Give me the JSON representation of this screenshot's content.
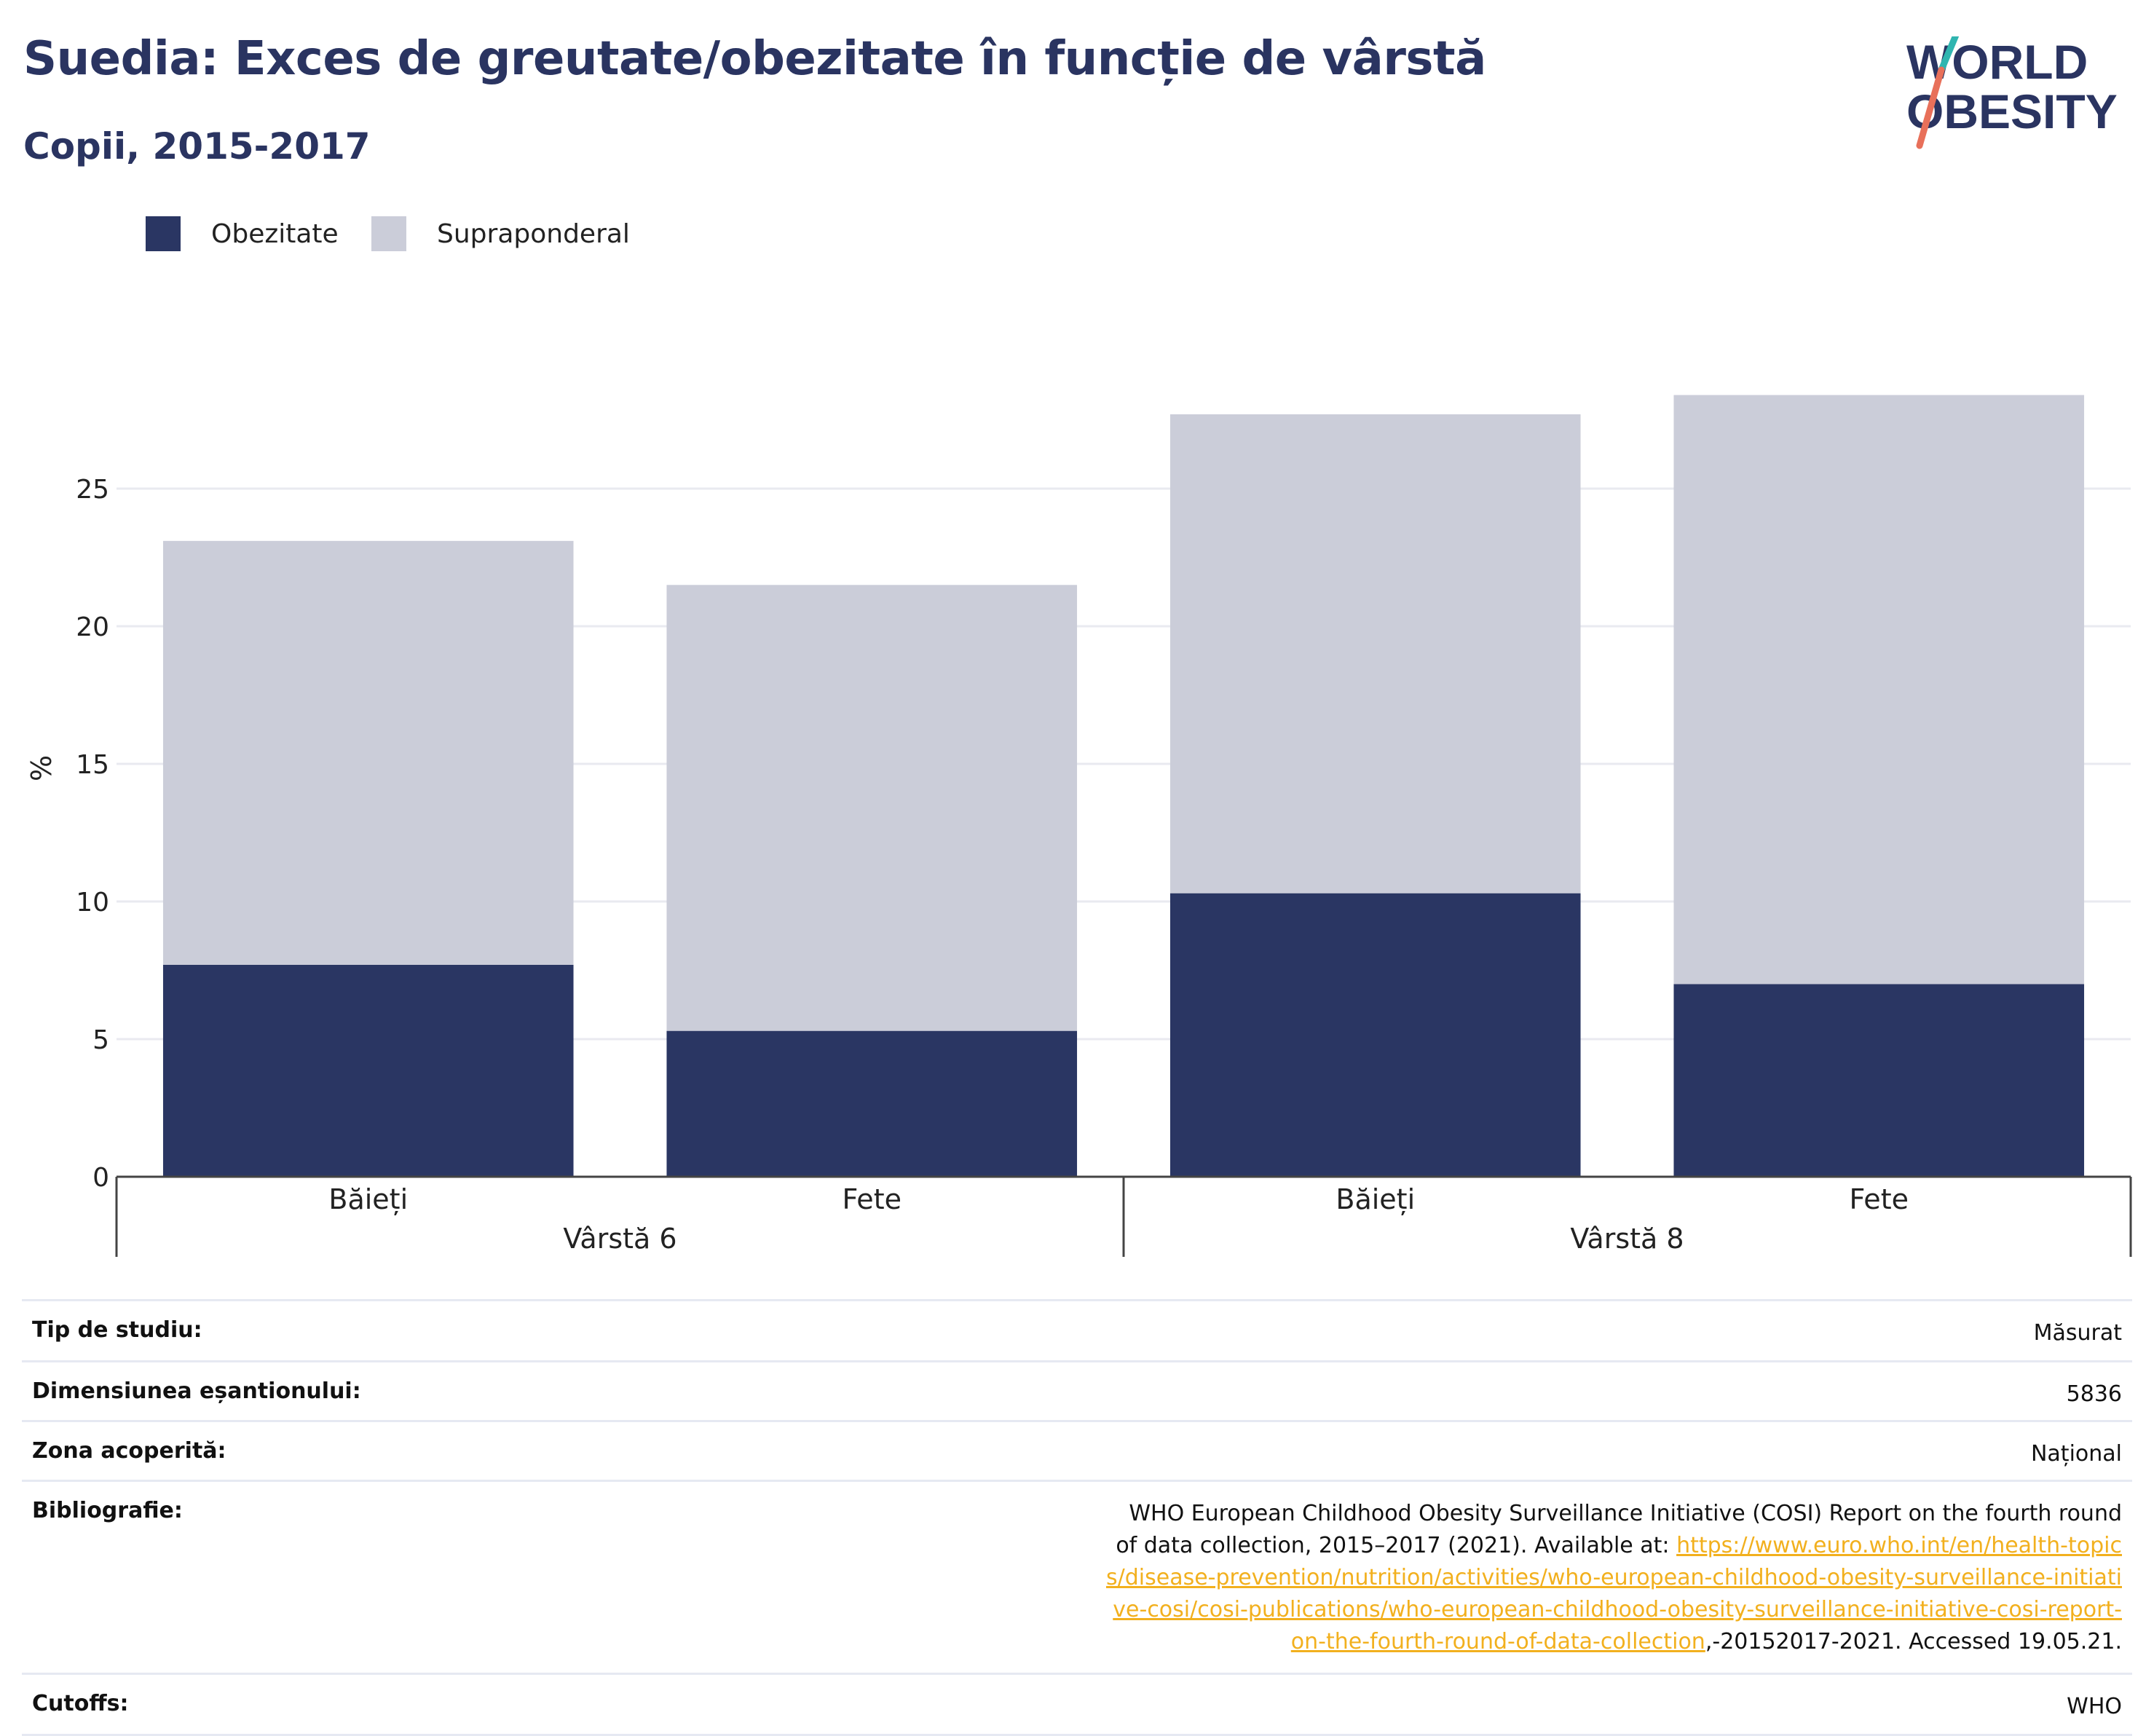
{
  "header": {
    "title": "Suedia: Exces de greutate/obezitate în funcție de vârstă",
    "subtitle": "Copii, 2015-2017"
  },
  "logo": {
    "line1": "WORLD",
    "line2": "OBESITY"
  },
  "colors": {
    "obesity": "#2a3663",
    "overweight": "#cbcdd9",
    "title": "#2a3461",
    "link": "#f2b01e"
  },
  "chart_data": {
    "type": "bar",
    "stacked": true,
    "ylabel": "%",
    "ylim": [
      0,
      30
    ],
    "yticks": [
      0,
      5,
      10,
      15,
      20,
      25
    ],
    "grid": true,
    "legend_position": "top-left",
    "groups": [
      "Vârstă 6",
      "Vârstă 8"
    ],
    "categories": [
      "Băieți",
      "Fete",
      "Băieți",
      "Fete"
    ],
    "category_group": [
      0,
      0,
      1,
      1
    ],
    "series": [
      {
        "name": "Obezitate",
        "color": "#2a3663",
        "values": [
          7.7,
          5.3,
          10.3,
          7.0
        ]
      },
      {
        "name": "Supraponderal",
        "color": "#cbcdd9",
        "values": [
          15.4,
          16.2,
          17.4,
          21.4
        ]
      }
    ]
  },
  "info": [
    {
      "key": "Tip de studiu:",
      "value": "Măsurat"
    },
    {
      "key": "Dimensiunea eșantionului:",
      "value": "5836"
    },
    {
      "key": "Zona acoperită:",
      "value": "Național"
    },
    {
      "key": "Bibliografie:",
      "value_text": "WHO European Childhood Obesity Surveillance Initiative (COSI) Report on the fourth round of data collection, 2015–2017 (2021). Available at: ",
      "value_link": "https://www.euro.who.int/en/health-topics/disease-prevention/nutrition/activities/who-european-childhood-obesity-surveillance-initiative-cosi/cosi-publications/who-european-childhood-obesity-surveillance-initiative-cosi-report-on-the-fourth-round-of-data-collection",
      "value_tail": ",-20152017-2021. Accessed 19.05.21."
    },
    {
      "key": "Cutoffs:",
      "value": "WHO"
    }
  ]
}
